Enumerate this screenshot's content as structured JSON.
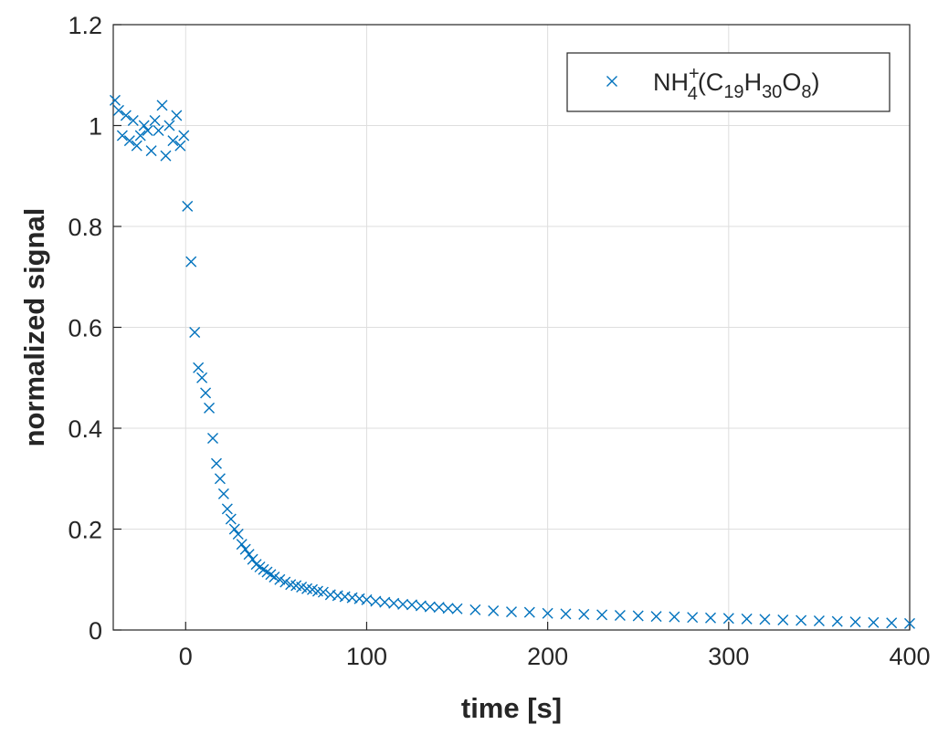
{
  "chart_data": {
    "type": "scatter",
    "title": "",
    "xlabel": "time [s]",
    "ylabel": "normalized signal",
    "xlim": [
      -40,
      400
    ],
    "ylim": [
      0,
      1.2
    ],
    "xticks": [
      0,
      100,
      200,
      300,
      400
    ],
    "yticks": [
      0,
      0.2,
      0.4,
      0.6,
      0.8,
      1,
      1.2
    ],
    "xtick_labels": [
      "0",
      "100",
      "200",
      "300",
      "400"
    ],
    "ytick_labels": [
      "0",
      "0.2",
      "0.4",
      "0.6",
      "0.8",
      "1",
      "1.2"
    ],
    "grid": true,
    "legend_position": "top-right",
    "legend": {
      "base": "NH",
      "sub1": "4",
      "sup1": "+",
      "open": "(C",
      "sub2": "19",
      "h": "H",
      "sub3": "30",
      "o": "O",
      "sub4": "8",
      "close": ")"
    },
    "marker": "x",
    "color": "#0072BD",
    "series": [
      {
        "name": "NH4+(C19H30O8)",
        "x": [
          -39,
          -37,
          -35,
          -33,
          -31,
          -29,
          -27,
          -25,
          -23,
          -21,
          -19,
          -17,
          -15,
          -13,
          -11,
          -9,
          -7,
          -5,
          -3,
          -1,
          1,
          3,
          5,
          7,
          9,
          11,
          13,
          15,
          17,
          19,
          21,
          23,
          25,
          27,
          29,
          31,
          33,
          35,
          37,
          39,
          41,
          43,
          45,
          47,
          49,
          52,
          55,
          58,
          61,
          64,
          67,
          70,
          73,
          76,
          80,
          84,
          88,
          92,
          96,
          100,
          105,
          110,
          115,
          120,
          125,
          130,
          135,
          140,
          145,
          150,
          160,
          170,
          180,
          190,
          200,
          210,
          220,
          230,
          240,
          250,
          260,
          270,
          280,
          290,
          300,
          310,
          320,
          330,
          340,
          350,
          360,
          370,
          380,
          390,
          400
        ],
        "y": [
          1.05,
          1.03,
          0.98,
          1.02,
          0.97,
          1.01,
          0.96,
          0.98,
          1.0,
          0.99,
          0.95,
          1.01,
          0.99,
          1.04,
          0.94,
          1.0,
          0.97,
          1.02,
          0.96,
          0.98,
          0.84,
          0.73,
          0.59,
          0.52,
          0.5,
          0.47,
          0.44,
          0.38,
          0.33,
          0.3,
          0.27,
          0.24,
          0.22,
          0.2,
          0.19,
          0.17,
          0.16,
          0.15,
          0.14,
          0.13,
          0.125,
          0.12,
          0.115,
          0.11,
          0.105,
          0.1,
          0.095,
          0.09,
          0.088,
          0.085,
          0.082,
          0.08,
          0.077,
          0.075,
          0.07,
          0.068,
          0.066,
          0.064,
          0.062,
          0.06,
          0.057,
          0.055,
          0.053,
          0.051,
          0.05,
          0.048,
          0.046,
          0.045,
          0.043,
          0.042,
          0.04,
          0.038,
          0.036,
          0.035,
          0.033,
          0.032,
          0.031,
          0.03,
          0.029,
          0.028,
          0.027,
          0.026,
          0.025,
          0.024,
          0.023,
          0.022,
          0.021,
          0.02,
          0.019,
          0.018,
          0.017,
          0.016,
          0.015,
          0.014,
          0.013
        ]
      }
    ]
  }
}
